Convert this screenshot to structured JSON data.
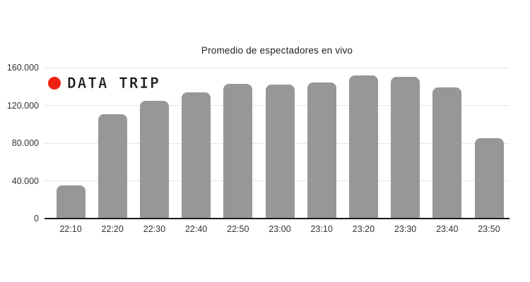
{
  "watermark": {
    "label": "DATA TRIP",
    "dot_color": "#ee2014"
  },
  "chart_data": {
    "type": "bar",
    "title": "Promedio de espectadores en vivo",
    "categories": [
      "22:10",
      "22:20",
      "22:30",
      "22:40",
      "22:50",
      "23:00",
      "23:10",
      "23:20",
      "23:30",
      "23:40",
      "23:50"
    ],
    "values": [
      35000,
      111000,
      125000,
      134000,
      143000,
      142000,
      144000,
      152000,
      150000,
      139000,
      85000
    ],
    "xlabel": "",
    "ylabel": "",
    "ylim": [
      0,
      160000
    ],
    "yticks": [
      0,
      40000,
      80000,
      120000,
      160000
    ],
    "ytick_labels": [
      "0",
      "40.000",
      "80.000",
      "120.000",
      "160.000"
    ],
    "grid": true,
    "legend_position": "none",
    "bar_color": "#979797",
    "gridline_color": "#e6e6e6",
    "axis_line_color": "#1a1a1a",
    "tick_text_color": "#333333",
    "title_color": "#222222"
  }
}
